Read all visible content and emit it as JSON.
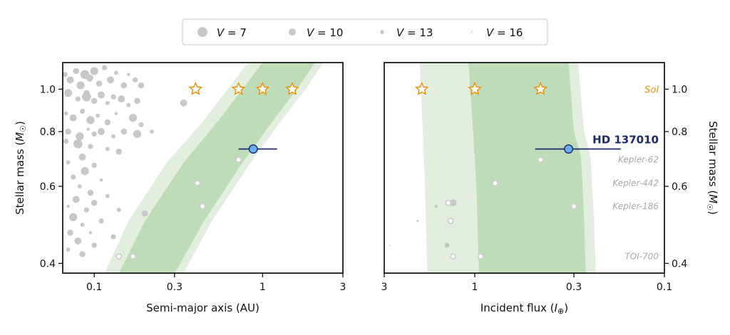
{
  "colors": {
    "hz_optimistic": "#e2efde",
    "hz_conservative": "#bfdcb8",
    "field_stars": "#c8c8c8",
    "kepler_planets": "#cfcfcf",
    "sol_star": "#f0900a",
    "target_fill": "#6aaef0",
    "target_edge": "#1b2a6b",
    "axis": "#000000"
  },
  "legend": {
    "placement": "top-center",
    "entries": [
      {
        "label": "V = 7",
        "v": 7
      },
      {
        "label": "V = 10",
        "v": 10
      },
      {
        "label": "V = 13",
        "v": 13
      },
      {
        "label": "V = 16",
        "v": 16
      }
    ]
  },
  "chart_data": [
    {
      "type": "scatter",
      "xlabel": "Semi-major axis (AU)",
      "ylabel": "Stellar mass (M☉)",
      "xscale": "log",
      "yscale": "log",
      "xlim": [
        0.065,
        3
      ],
      "ylim": [
        0.38,
        1.15
      ],
      "xticks": [
        {
          "v": 0.1,
          "label": "0.1"
        },
        {
          "v": 0.3,
          "label": "0.3"
        },
        {
          "v": 1,
          "label": "1"
        },
        {
          "v": 3,
          "label": "3"
        }
      ],
      "yticks": [
        {
          "v": 0.4,
          "label": "0.4"
        },
        {
          "v": 0.6,
          "label": "0.6"
        },
        {
          "v": 0.8,
          "label": "0.8"
        },
        {
          "v": 1.0,
          "label": "1.0"
        }
      ],
      "hz_optimistic": {
        "inner": [
          [
            0.115,
            0.38
          ],
          [
            0.16,
            0.5
          ],
          [
            0.27,
            0.68
          ],
          [
            0.45,
            0.85
          ],
          [
            0.62,
            1.0
          ],
          [
            0.82,
            1.15
          ]
        ],
        "outer": [
          [
            0.34,
            0.38
          ],
          [
            0.5,
            0.5
          ],
          [
            0.85,
            0.68
          ],
          [
            1.3,
            0.85
          ],
          [
            1.8,
            1.0
          ],
          [
            2.3,
            1.15
          ]
        ]
      },
      "hz_conservative": {
        "inner": [
          [
            0.14,
            0.38
          ],
          [
            0.2,
            0.5
          ],
          [
            0.34,
            0.68
          ],
          [
            0.55,
            0.85
          ],
          [
            0.76,
            1.0
          ],
          [
            1.0,
            1.15
          ]
        ],
        "outer": [
          [
            0.3,
            0.38
          ],
          [
            0.45,
            0.5
          ],
          [
            0.76,
            0.68
          ],
          [
            1.16,
            0.85
          ],
          [
            1.6,
            1.0
          ],
          [
            2.05,
            1.15
          ]
        ]
      },
      "sol_stars": [
        {
          "x": 0.4,
          "y": 1.0
        },
        {
          "x": 0.72,
          "y": 1.0
        },
        {
          "x": 1.0,
          "y": 1.0
        },
        {
          "x": 1.5,
          "y": 1.0
        }
      ],
      "target": {
        "x": 0.88,
        "y": 0.73,
        "xerr": [
          0.72,
          1.22
        ]
      },
      "kepler_planets": [
        {
          "x": 0.72,
          "y": 0.69
        },
        {
          "x": 0.41,
          "y": 0.61
        },
        {
          "x": 0.44,
          "y": 0.54
        },
        {
          "x": 0.14,
          "y": 0.415
        },
        {
          "x": 0.17,
          "y": 0.415
        }
      ],
      "field_stars": [
        {
          "x": 0.067,
          "y": 1.08,
          "v": 12
        },
        {
          "x": 0.072,
          "y": 1.05,
          "v": 10
        },
        {
          "x": 0.078,
          "y": 1.1,
          "v": 11
        },
        {
          "x": 0.083,
          "y": 1.02,
          "v": 9
        },
        {
          "x": 0.088,
          "y": 1.08,
          "v": 8
        },
        {
          "x": 0.094,
          "y": 1.06,
          "v": 10
        },
        {
          "x": 0.1,
          "y": 1.1,
          "v": 9
        },
        {
          "x": 0.107,
          "y": 1.03,
          "v": 11
        },
        {
          "x": 0.115,
          "y": 1.12,
          "v": 12
        },
        {
          "x": 0.125,
          "y": 1.05,
          "v": 10
        },
        {
          "x": 0.135,
          "y": 1.09,
          "v": 13
        },
        {
          "x": 0.15,
          "y": 1.02,
          "v": 11
        },
        {
          "x": 0.16,
          "y": 1.08,
          "v": 14
        },
        {
          "x": 0.175,
          "y": 1.05,
          "v": 12
        },
        {
          "x": 0.19,
          "y": 1.02,
          "v": 11
        },
        {
          "x": 0.07,
          "y": 0.98,
          "v": 9
        },
        {
          "x": 0.08,
          "y": 0.95,
          "v": 12
        },
        {
          "x": 0.09,
          "y": 0.96,
          "v": 8
        },
        {
          "x": 0.1,
          "y": 0.94,
          "v": 11
        },
        {
          "x": 0.11,
          "y": 0.97,
          "v": 10
        },
        {
          "x": 0.12,
          "y": 0.93,
          "v": 13
        },
        {
          "x": 0.13,
          "y": 0.96,
          "v": 12
        },
        {
          "x": 0.145,
          "y": 0.95,
          "v": 10
        },
        {
          "x": 0.16,
          "y": 0.92,
          "v": 13
        },
        {
          "x": 0.18,
          "y": 0.94,
          "v": 11
        },
        {
          "x": 0.34,
          "y": 0.93,
          "v": 10
        },
        {
          "x": 0.068,
          "y": 0.88,
          "v": 13
        },
        {
          "x": 0.075,
          "y": 0.86,
          "v": 10
        },
        {
          "x": 0.085,
          "y": 0.89,
          "v": 12
        },
        {
          "x": 0.095,
          "y": 0.85,
          "v": 9
        },
        {
          "x": 0.105,
          "y": 0.87,
          "v": 13
        },
        {
          "x": 0.12,
          "y": 0.84,
          "v": 11
        },
        {
          "x": 0.135,
          "y": 0.88,
          "v": 14
        },
        {
          "x": 0.17,
          "y": 0.86,
          "v": 9
        },
        {
          "x": 0.19,
          "y": 0.83,
          "v": 12
        },
        {
          "x": 0.07,
          "y": 0.8,
          "v": 11
        },
        {
          "x": 0.082,
          "y": 0.78,
          "v": 9
        },
        {
          "x": 0.092,
          "y": 0.81,
          "v": 14
        },
        {
          "x": 0.1,
          "y": 0.79,
          "v": 12
        },
        {
          "x": 0.11,
          "y": 0.8,
          "v": 10
        },
        {
          "x": 0.13,
          "y": 0.78,
          "v": 13
        },
        {
          "x": 0.15,
          "y": 0.8,
          "v": 11
        },
        {
          "x": 0.18,
          "y": 0.79,
          "v": 9
        },
        {
          "x": 0.22,
          "y": 0.8,
          "v": 13
        },
        {
          "x": 0.068,
          "y": 0.76,
          "v": 12
        },
        {
          "x": 0.08,
          "y": 0.75,
          "v": 8
        },
        {
          "x": 0.095,
          "y": 0.74,
          "v": 12
        },
        {
          "x": 0.12,
          "y": 0.73,
          "v": 13
        },
        {
          "x": 0.14,
          "y": 0.72,
          "v": 11
        },
        {
          "x": 0.085,
          "y": 0.7,
          "v": 10
        },
        {
          "x": 0.07,
          "y": 0.68,
          "v": 13
        },
        {
          "x": 0.1,
          "y": 0.67,
          "v": 12
        },
        {
          "x": 0.088,
          "y": 0.65,
          "v": 9
        },
        {
          "x": 0.075,
          "y": 0.63,
          "v": 12
        },
        {
          "x": 0.11,
          "y": 0.62,
          "v": 14
        },
        {
          "x": 0.082,
          "y": 0.6,
          "v": 13
        },
        {
          "x": 0.095,
          "y": 0.58,
          "v": 11
        },
        {
          "x": 0.078,
          "y": 0.56,
          "v": 10
        },
        {
          "x": 0.12,
          "y": 0.57,
          "v": 13
        },
        {
          "x": 0.07,
          "y": 0.54,
          "v": 14
        },
        {
          "x": 0.09,
          "y": 0.53,
          "v": 12
        },
        {
          "x": 0.1,
          "y": 0.55,
          "v": 11
        },
        {
          "x": 0.14,
          "y": 0.53,
          "v": 13
        },
        {
          "x": 0.2,
          "y": 0.52,
          "v": 11
        },
        {
          "x": 0.075,
          "y": 0.51,
          "v": 9
        },
        {
          "x": 0.085,
          "y": 0.49,
          "v": 13
        },
        {
          "x": 0.11,
          "y": 0.5,
          "v": 12
        },
        {
          "x": 0.072,
          "y": 0.47,
          "v": 11
        },
        {
          "x": 0.095,
          "y": 0.47,
          "v": 14
        },
        {
          "x": 0.13,
          "y": 0.46,
          "v": 12
        },
        {
          "x": 0.08,
          "y": 0.45,
          "v": 10
        },
        {
          "x": 0.07,
          "y": 0.43,
          "v": 13
        },
        {
          "x": 0.1,
          "y": 0.44,
          "v": 12
        },
        {
          "x": 0.085,
          "y": 0.42,
          "v": 11
        },
        {
          "x": 0.09,
          "y": 0.98,
          "v": 11
        }
      ]
    },
    {
      "type": "scatter",
      "xlabel": "Incident flux (I⊕)",
      "ylabel": "Stellar mass (M☉)",
      "xscale": "log",
      "xreversed": true,
      "yscale": "log",
      "xlim": [
        3,
        0.1
      ],
      "ylim": [
        0.38,
        1.15
      ],
      "xticks": [
        {
          "v": 3,
          "label": "3"
        },
        {
          "v": 1,
          "label": "1"
        },
        {
          "v": 0.3,
          "label": "0.3"
        },
        {
          "v": 0.1,
          "label": "0.1"
        }
      ],
      "yticks": [
        {
          "v": 0.4,
          "label": "0.4"
        },
        {
          "v": 0.6,
          "label": "0.6"
        },
        {
          "v": 0.8,
          "label": "0.8"
        },
        {
          "v": 1.0,
          "label": "1.0"
        }
      ],
      "hz_optimistic": {
        "left": [
          [
            1.78,
            0.38
          ],
          [
            1.83,
            0.6
          ],
          [
            1.88,
            0.8
          ],
          [
            1.95,
            1.15
          ]
        ],
        "right": [
          [
            0.23,
            0.38
          ],
          [
            0.235,
            0.5
          ],
          [
            0.245,
            0.7
          ],
          [
            0.265,
            0.8
          ],
          [
            0.285,
            1.15
          ]
        ]
      },
      "hz_conservative": {
        "left": [
          [
            0.95,
            0.38
          ],
          [
            0.98,
            0.6
          ],
          [
            1.02,
            0.8
          ],
          [
            1.08,
            1.15
          ]
        ],
        "right": [
          [
            0.26,
            0.38
          ],
          [
            0.265,
            0.5
          ],
          [
            0.275,
            0.7
          ],
          [
            0.3,
            0.8
          ],
          [
            0.32,
            1.15
          ]
        ]
      },
      "sol_stars": [
        {
          "x": 1.9,
          "y": 1.0
        },
        {
          "x": 1.0,
          "y": 1.0
        },
        {
          "x": 0.45,
          "y": 1.0
        }
      ],
      "target": {
        "x": 0.32,
        "y": 0.73,
        "xerr": [
          0.48,
          0.17
        ]
      },
      "kepler_planets": [
        {
          "x": 0.45,
          "y": 0.69
        },
        {
          "x": 0.78,
          "y": 0.61
        },
        {
          "x": 0.3,
          "y": 0.54
        },
        {
          "x": 1.38,
          "y": 0.55
        },
        {
          "x": 1.34,
          "y": 0.5
        },
        {
          "x": 1.3,
          "y": 0.415
        },
        {
          "x": 0.93,
          "y": 0.415
        }
      ],
      "field_stars": [
        {
          "x": 1.3,
          "y": 0.55,
          "v": 10
        },
        {
          "x": 1.6,
          "y": 0.54,
          "v": 14
        },
        {
          "x": 2.0,
          "y": 0.5,
          "v": 15
        },
        {
          "x": 1.4,
          "y": 0.44,
          "v": 12
        },
        {
          "x": 2.8,
          "y": 0.44,
          "v": 16
        }
      ],
      "system_labels": [
        {
          "text": "Kepler-62",
          "y": 0.69
        },
        {
          "text": "Kepler-442",
          "y": 0.61
        },
        {
          "text": "Kepler-186",
          "y": 0.54
        },
        {
          "text": "TOI-700",
          "y": 0.415
        }
      ],
      "sol_label": "Sol",
      "target_label": "HD 137010"
    }
  ]
}
